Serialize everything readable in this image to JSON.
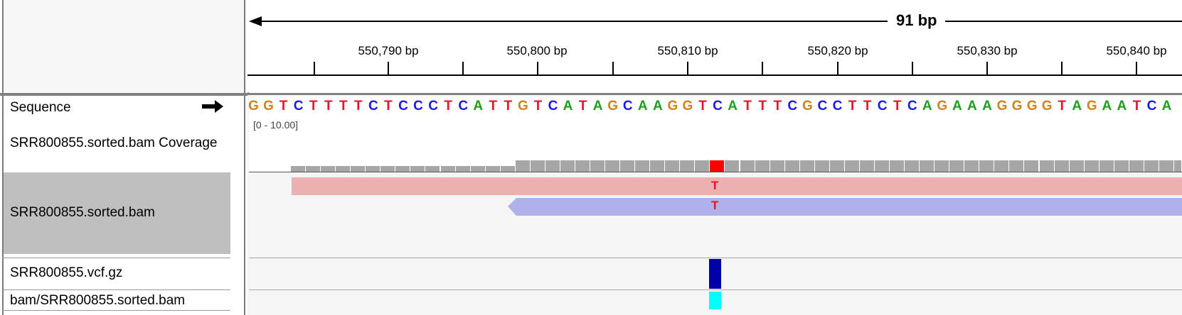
{
  "ruler": {
    "span": "91 bp",
    "ticks": [
      "550,790 bp",
      "550,800 bp",
      "550,810 bp",
      "550,820 bp",
      "550,830 bp",
      "550,840 bp"
    ]
  },
  "tracks": {
    "sequence": "Sequence",
    "coverage": "SRR800855.sorted.bam Coverage",
    "bam": "SRR800855.sorted.bam",
    "vcf": "SRR800855.vcf.gz",
    "junctions": "bam/SRR800855.sorted.bam"
  },
  "coverage_range": "[0 - 10.00]",
  "sequence_bases": "GGTCTTTTCTCCCTCATTGTCATAGCAAGGTCATTTCGCCTTCTCAGAAAGGGGTAGAATCAA",
  "base_colors": {
    "A": "#1aa01a",
    "C": "#1a1ae0",
    "G": "#d1821c",
    "T": "#e4152d"
  },
  "reads": {
    "forward_mismatch": "T",
    "reverse_mismatch": "T"
  },
  "colors": {
    "coverage": "#a6a6a6",
    "mismatch": "#ff0000",
    "forward_read": "#ecb0b0",
    "reverse_read": "#b0b0ec",
    "variant": "#0000aa",
    "genotype": "#00ffff"
  },
  "icons": {
    "strand": "right-arrow-icon"
  }
}
